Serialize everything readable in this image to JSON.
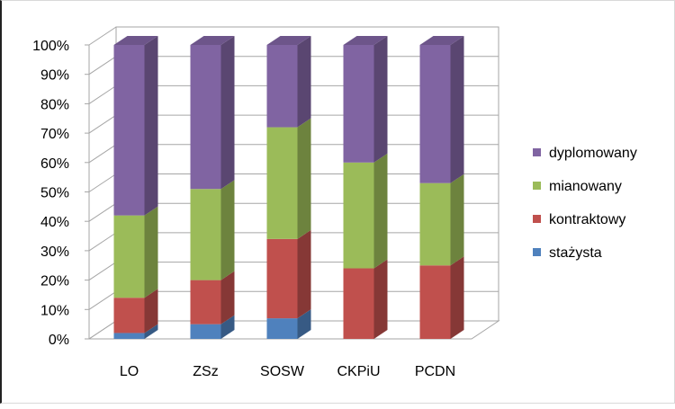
{
  "chart_data": {
    "type": "bar",
    "stacked": true,
    "percent": true,
    "categories": [
      "LO",
      "ZSz",
      "SOSW",
      "CKPiU",
      "PCDN"
    ],
    "series": [
      {
        "name": "stażysta",
        "values": [
          2,
          5,
          7,
          0,
          0
        ],
        "color": "#4F81BD"
      },
      {
        "name": "kontraktowy",
        "values": [
          12,
          15,
          27,
          24,
          25
        ],
        "color": "#C0504D"
      },
      {
        "name": "mianowany",
        "values": [
          28,
          31,
          38,
          36,
          28
        ],
        "color": "#9BBB59"
      },
      {
        "name": "dyplomowany",
        "values": [
          58,
          49,
          28,
          40,
          47
        ],
        "color": "#8064A2"
      }
    ],
    "yticks": [
      "0%",
      "10%",
      "20%",
      "30%",
      "40%",
      "50%",
      "60%",
      "70%",
      "80%",
      "90%",
      "100%"
    ],
    "ylim": [
      0,
      100
    ],
    "grid": true,
    "legend": "right"
  }
}
